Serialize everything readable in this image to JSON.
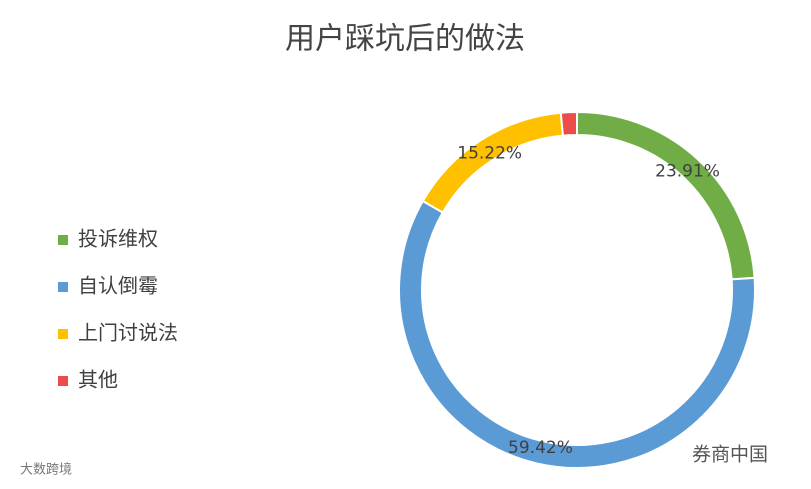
{
  "chart_data": {
    "type": "donut",
    "title": "用户踩坑后的做法",
    "categories": [
      "投诉维权",
      "自认倒霉",
      "上门讨说法",
      "其他"
    ],
    "values": [
      23.91,
      59.42,
      15.22,
      1.45
    ],
    "value_labels": [
      "23.91%",
      "59.42%",
      "15.22%",
      null
    ],
    "colors": [
      "#70ad47",
      "#5b9bd5",
      "#ffc000",
      "#ee4b4b"
    ],
    "legend": "left",
    "watermark": "券商中国",
    "source_mark": "大数跨境"
  }
}
